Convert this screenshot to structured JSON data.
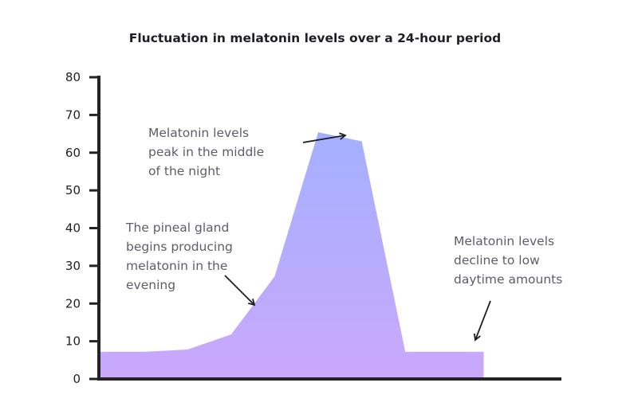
{
  "chart_data": {
    "type": "area",
    "title": "Fluctuation in melatonin levels over a 24-hour period",
    "xlabel": "",
    "ylabel": "",
    "ylim": [
      0,
      80
    ],
    "yticks": [
      "0",
      "10",
      "20",
      "30",
      "40",
      "50",
      "60",
      "70",
      "80"
    ],
    "x": [
      0,
      1,
      2,
      3,
      4,
      5,
      6,
      7,
      8.8
    ],
    "values": [
      7.2,
      7.2,
      7.8,
      11.8,
      27.2,
      65.4,
      63,
      7.2,
      7.2
    ],
    "grid": false,
    "colors": {
      "top": "#a4b0ff",
      "bottom": "#caa8fc",
      "axis": "#222228"
    },
    "annotations": [
      {
        "lines": [
          "Melatonin levels",
          "peak in the middle",
          "of the night"
        ]
      },
      {
        "lines": [
          "The pineal gland",
          "begins producing",
          "melatonin in the",
          "evening"
        ]
      },
      {
        "lines": [
          "Melatonin levels",
          "decline to low",
          "daytime amounts"
        ]
      }
    ]
  }
}
